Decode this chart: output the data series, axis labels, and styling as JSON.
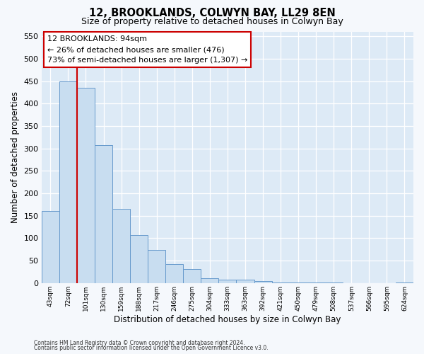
{
  "title": "12, BROOKLANDS, COLWYN BAY, LL29 8EN",
  "subtitle": "Size of property relative to detached houses in Colwyn Bay",
  "xlabel": "Distribution of detached houses by size in Colwyn Bay",
  "ylabel": "Number of detached properties",
  "bar_color": "#c8ddf0",
  "bar_edge_color": "#6699cc",
  "background_color": "#ddeaf6",
  "grid_color": "#ffffff",
  "fig_bg": "#f5f8fc",
  "bin_labels": [
    "43sqm",
    "72sqm",
    "101sqm",
    "130sqm",
    "159sqm",
    "188sqm",
    "217sqm",
    "246sqm",
    "275sqm",
    "304sqm",
    "333sqm",
    "363sqm",
    "392sqm",
    "421sqm",
    "450sqm",
    "479sqm",
    "508sqm",
    "537sqm",
    "566sqm",
    "595sqm",
    "624sqm"
  ],
  "bar_heights": [
    160,
    450,
    435,
    308,
    165,
    107,
    74,
    43,
    32,
    10,
    8,
    8,
    5,
    2,
    1,
    1,
    1,
    0,
    0,
    0,
    2
  ],
  "property_line_x": 2,
  "property_line_color": "#cc0000",
  "ylim": [
    0,
    560
  ],
  "yticks": [
    0,
    50,
    100,
    150,
    200,
    250,
    300,
    350,
    400,
    450,
    500,
    550
  ],
  "annotation_title": "12 BROOKLANDS: 94sqm",
  "annotation_line1": "← 26% of detached houses are smaller (476)",
  "annotation_line2": "73% of semi-detached houses are larger (1,307) →",
  "annotation_box_face": "#ffffff",
  "annotation_box_edge": "#cc0000",
  "footer_line1": "Contains HM Land Registry data © Crown copyright and database right 2024.",
  "footer_line2": "Contains public sector information licensed under the Open Government Licence v3.0."
}
